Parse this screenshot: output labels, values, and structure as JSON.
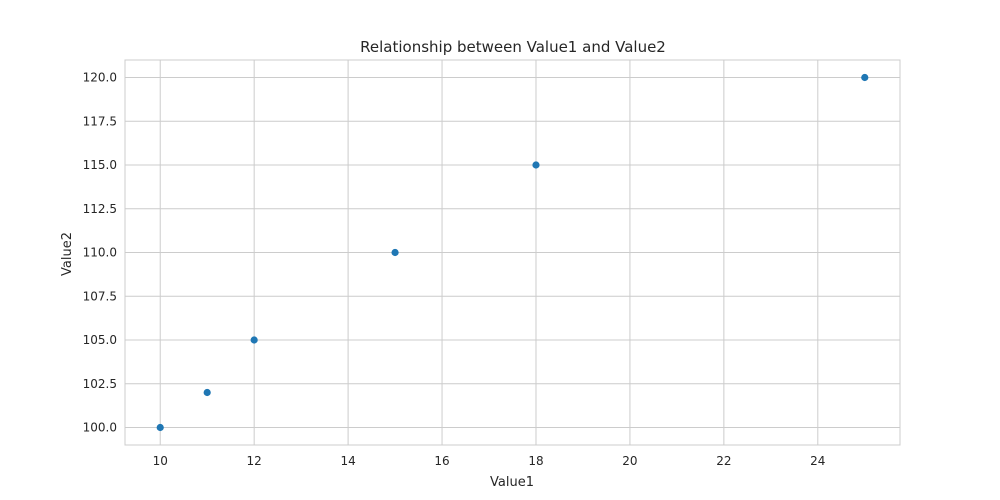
{
  "chart_data": {
    "type": "scatter",
    "title": "Relationship between Value1 and Value2",
    "xlabel": "Value1",
    "ylabel": "Value2",
    "xlim": [
      9.25,
      25.75
    ],
    "ylim": [
      99.0,
      121.0
    ],
    "xticks": [
      10,
      12,
      14,
      16,
      18,
      20,
      22,
      24
    ],
    "yticks": [
      100.0,
      102.5,
      105.0,
      107.5,
      110.0,
      112.5,
      115.0,
      117.5,
      120.0
    ],
    "grid": true,
    "legend": "none",
    "color": "#1f77b4",
    "points": [
      {
        "x": 10,
        "y": 100
      },
      {
        "x": 11,
        "y": 102
      },
      {
        "x": 12,
        "y": 105
      },
      {
        "x": 15,
        "y": 110
      },
      {
        "x": 18,
        "y": 115
      },
      {
        "x": 25,
        "y": 120
      }
    ]
  }
}
